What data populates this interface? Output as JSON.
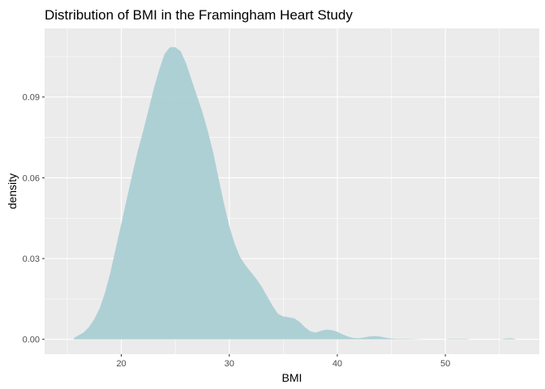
{
  "chart_data": {
    "type": "area",
    "title": "Distribution of BMI in the Framingham Heart Study",
    "xlabel": "BMI",
    "ylabel": "density",
    "xlim": [
      12.9,
      58.7
    ],
    "ylim": [
      -0.0055,
      0.1155
    ],
    "x_ticks": [
      20,
      30,
      40,
      50
    ],
    "y_ticks": [
      0.0,
      0.03,
      0.06,
      0.09
    ],
    "x_tick_labels": [
      "20",
      "30",
      "40",
      "50"
    ],
    "y_tick_labels": [
      "0.00",
      "0.03",
      "0.06",
      "0.09"
    ],
    "grid": true,
    "legend": "none",
    "series": [
      {
        "fill_color": "#a7cdd3",
        "x": [
          15.6,
          16.5,
          17.0,
          17.5,
          18.0,
          18.5,
          19.0,
          19.5,
          20.0,
          20.5,
          21.0,
          21.5,
          22.0,
          22.5,
          23.0,
          23.5,
          24.0,
          24.5,
          25.0,
          25.5,
          26.0,
          26.5,
          27.0,
          27.5,
          28.0,
          28.5,
          29.0,
          29.5,
          30.0,
          30.5,
          31.0,
          31.5,
          32.0,
          32.5,
          33.0,
          33.5,
          34.0,
          34.5,
          35.0,
          35.5,
          36.0,
          36.5,
          37.0,
          37.5,
          38.0,
          38.5,
          39.0,
          39.5,
          40.0,
          40.5,
          41.0,
          41.5,
          42.0,
          42.5,
          43.0,
          43.5,
          44.0,
          44.5,
          45.0,
          45.5,
          46.0,
          46.5,
          47.0,
          48.0,
          49.0,
          50.0,
          50.3,
          51.0,
          52.0,
          52.3,
          53.0,
          55.0,
          55.6,
          56.0,
          56.3,
          56.6
        ],
        "y": [
          0.0005,
          0.0025,
          0.0045,
          0.0075,
          0.0115,
          0.0175,
          0.025,
          0.034,
          0.043,
          0.052,
          0.061,
          0.0695,
          0.077,
          0.085,
          0.093,
          0.1,
          0.106,
          0.1085,
          0.1085,
          0.107,
          0.1025,
          0.0965,
          0.0905,
          0.0845,
          0.0775,
          0.0695,
          0.06,
          0.0505,
          0.042,
          0.0355,
          0.0305,
          0.0275,
          0.025,
          0.0225,
          0.0195,
          0.016,
          0.0125,
          0.0095,
          0.0085,
          0.0082,
          0.0078,
          0.0065,
          0.0045,
          0.003,
          0.0025,
          0.0032,
          0.0036,
          0.0034,
          0.0028,
          0.0018,
          0.001,
          0.0005,
          0.0004,
          0.0007,
          0.0011,
          0.0012,
          0.001,
          0.0006,
          0.0003,
          0.0002,
          0.0002,
          0.0002,
          0.0001,
          0.0,
          0.0,
          0.0,
          0.0002,
          0.0002,
          0.0002,
          0.0,
          0.0,
          0.0,
          0.0003,
          0.0004,
          0.0003,
          0.0
        ]
      }
    ]
  }
}
